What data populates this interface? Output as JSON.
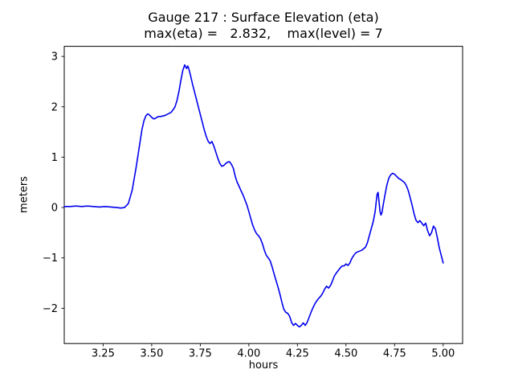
{
  "chart_data": {
    "type": "line",
    "title": "Gauge 217 : Surface Elevation (eta)",
    "subtitle": "max(eta) =   2.832,    max(level) = 7",
    "xlabel": "hours",
    "ylabel": "meters",
    "xlim": [
      3.05,
      5.1
    ],
    "ylim": [
      -2.7,
      3.2
    ],
    "xticks": {
      "values": [
        3.25,
        3.5,
        3.75,
        4.0,
        4.25,
        4.5,
        4.75,
        5.0
      ],
      "labels": [
        "3.25",
        "3.50",
        "3.75",
        "4.00",
        "4.25",
        "4.50",
        "4.75",
        "5.00"
      ]
    },
    "yticks": {
      "values": [
        -2,
        -1,
        0,
        1,
        2,
        3
      ],
      "labels": [
        "−2",
        "−1",
        "0",
        "1",
        "2",
        "3"
      ]
    },
    "legend": "none",
    "grid": false,
    "line_color": "#0000ee",
    "line_width": 1.6,
    "max_eta": 2.832,
    "max_level": 7,
    "series": [
      {
        "name": "eta",
        "points": [
          [
            3.05,
            0.02
          ],
          [
            3.08,
            0.02
          ],
          [
            3.11,
            0.03
          ],
          [
            3.14,
            0.02
          ],
          [
            3.17,
            0.03
          ],
          [
            3.2,
            0.02
          ],
          [
            3.23,
            0.01
          ],
          [
            3.26,
            0.02
          ],
          [
            3.29,
            0.01
          ],
          [
            3.32,
            0.0
          ],
          [
            3.34,
            -0.01
          ],
          [
            3.36,
            0.0
          ],
          [
            3.38,
            0.08
          ],
          [
            3.4,
            0.35
          ],
          [
            3.42,
            0.8
          ],
          [
            3.44,
            1.3
          ],
          [
            3.45,
            1.55
          ],
          [
            3.46,
            1.72
          ],
          [
            3.47,
            1.82
          ],
          [
            3.48,
            1.86
          ],
          [
            3.49,
            1.83
          ],
          [
            3.5,
            1.79
          ],
          [
            3.51,
            1.76
          ],
          [
            3.52,
            1.77
          ],
          [
            3.53,
            1.8
          ],
          [
            3.55,
            1.81
          ],
          [
            3.57,
            1.83
          ],
          [
            3.58,
            1.85
          ],
          [
            3.6,
            1.89
          ],
          [
            3.61,
            1.94
          ],
          [
            3.62,
            2.0
          ],
          [
            3.63,
            2.12
          ],
          [
            3.64,
            2.3
          ],
          [
            3.65,
            2.52
          ],
          [
            3.66,
            2.72
          ],
          [
            3.67,
            2.832
          ],
          [
            3.675,
            2.79
          ],
          [
            3.68,
            2.76
          ],
          [
            3.685,
            2.81
          ],
          [
            3.69,
            2.77
          ],
          [
            3.7,
            2.62
          ],
          [
            3.71,
            2.45
          ],
          [
            3.72,
            2.3
          ],
          [
            3.73,
            2.15
          ],
          [
            3.74,
            2.0
          ],
          [
            3.75,
            1.85
          ],
          [
            3.76,
            1.7
          ],
          [
            3.77,
            1.55
          ],
          [
            3.78,
            1.42
          ],
          [
            3.79,
            1.32
          ],
          [
            3.8,
            1.27
          ],
          [
            3.81,
            1.31
          ],
          [
            3.82,
            1.22
          ],
          [
            3.83,
            1.1
          ],
          [
            3.84,
            0.98
          ],
          [
            3.85,
            0.88
          ],
          [
            3.86,
            0.82
          ],
          [
            3.87,
            0.83
          ],
          [
            3.88,
            0.87
          ],
          [
            3.89,
            0.9
          ],
          [
            3.9,
            0.91
          ],
          [
            3.91,
            0.86
          ],
          [
            3.92,
            0.78
          ],
          [
            3.93,
            0.62
          ],
          [
            3.94,
            0.5
          ],
          [
            3.95,
            0.42
          ],
          [
            3.96,
            0.33
          ],
          [
            3.97,
            0.25
          ],
          [
            3.98,
            0.15
          ],
          [
            3.99,
            0.05
          ],
          [
            4.0,
            -0.08
          ],
          [
            4.01,
            -0.22
          ],
          [
            4.02,
            -0.35
          ],
          [
            4.03,
            -0.45
          ],
          [
            4.04,
            -0.52
          ],
          [
            4.05,
            -0.56
          ],
          [
            4.06,
            -0.62
          ],
          [
            4.07,
            -0.72
          ],
          [
            4.08,
            -0.85
          ],
          [
            4.09,
            -0.95
          ],
          [
            4.1,
            -1.0
          ],
          [
            4.11,
            -1.06
          ],
          [
            4.12,
            -1.18
          ],
          [
            4.13,
            -1.32
          ],
          [
            4.14,
            -1.45
          ],
          [
            4.15,
            -1.58
          ],
          [
            4.16,
            -1.72
          ],
          [
            4.17,
            -1.88
          ],
          [
            4.18,
            -2.02
          ],
          [
            4.19,
            -2.08
          ],
          [
            4.2,
            -2.1
          ],
          [
            4.21,
            -2.16
          ],
          [
            4.22,
            -2.28
          ],
          [
            4.23,
            -2.34
          ],
          [
            4.24,
            -2.3
          ],
          [
            4.25,
            -2.34
          ],
          [
            4.26,
            -2.37
          ],
          [
            4.27,
            -2.34
          ],
          [
            4.28,
            -2.29
          ],
          [
            4.29,
            -2.34
          ],
          [
            4.3,
            -2.28
          ],
          [
            4.31,
            -2.18
          ],
          [
            4.32,
            -2.08
          ],
          [
            4.33,
            -1.99
          ],
          [
            4.34,
            -1.91
          ],
          [
            4.35,
            -1.85
          ],
          [
            4.36,
            -1.8
          ],
          [
            4.37,
            -1.76
          ],
          [
            4.38,
            -1.7
          ],
          [
            4.39,
            -1.62
          ],
          [
            4.4,
            -1.56
          ],
          [
            4.41,
            -1.6
          ],
          [
            4.42,
            -1.55
          ],
          [
            4.43,
            -1.46
          ],
          [
            4.44,
            -1.36
          ],
          [
            4.45,
            -1.3
          ],
          [
            4.46,
            -1.25
          ],
          [
            4.47,
            -1.2
          ],
          [
            4.48,
            -1.16
          ],
          [
            4.49,
            -1.16
          ],
          [
            4.5,
            -1.12
          ],
          [
            4.51,
            -1.15
          ],
          [
            4.52,
            -1.1
          ],
          [
            4.53,
            -1.01
          ],
          [
            4.54,
            -0.95
          ],
          [
            4.55,
            -0.9
          ],
          [
            4.56,
            -0.88
          ],
          [
            4.58,
            -0.85
          ],
          [
            4.6,
            -0.79
          ],
          [
            4.61,
            -0.7
          ],
          [
            4.62,
            -0.56
          ],
          [
            4.63,
            -0.42
          ],
          [
            4.64,
            -0.28
          ],
          [
            4.65,
            -0.08
          ],
          [
            4.655,
            0.1
          ],
          [
            4.66,
            0.26
          ],
          [
            4.665,
            0.3
          ],
          [
            4.67,
            0.12
          ],
          [
            4.675,
            -0.08
          ],
          [
            4.68,
            -0.15
          ],
          [
            4.685,
            -0.1
          ],
          [
            4.69,
            0.02
          ],
          [
            4.7,
            0.24
          ],
          [
            4.71,
            0.44
          ],
          [
            4.72,
            0.58
          ],
          [
            4.73,
            0.65
          ],
          [
            4.74,
            0.68
          ],
          [
            4.75,
            0.66
          ],
          [
            4.76,
            0.62
          ],
          [
            4.77,
            0.58
          ],
          [
            4.78,
            0.56
          ],
          [
            4.79,
            0.53
          ],
          [
            4.8,
            0.5
          ],
          [
            4.81,
            0.44
          ],
          [
            4.82,
            0.34
          ],
          [
            4.83,
            0.2
          ],
          [
            4.84,
            0.05
          ],
          [
            4.85,
            -0.12
          ],
          [
            4.86,
            -0.25
          ],
          [
            4.87,
            -0.3
          ],
          [
            4.88,
            -0.26
          ],
          [
            4.89,
            -0.31
          ],
          [
            4.9,
            -0.36
          ],
          [
            4.91,
            -0.31
          ],
          [
            4.92,
            -0.46
          ],
          [
            4.93,
            -0.56
          ],
          [
            4.94,
            -0.5
          ],
          [
            4.95,
            -0.37
          ],
          [
            4.96,
            -0.42
          ],
          [
            4.97,
            -0.6
          ],
          [
            4.98,
            -0.8
          ],
          [
            4.99,
            -0.95
          ],
          [
            5.0,
            -1.1
          ]
        ]
      }
    ]
  }
}
